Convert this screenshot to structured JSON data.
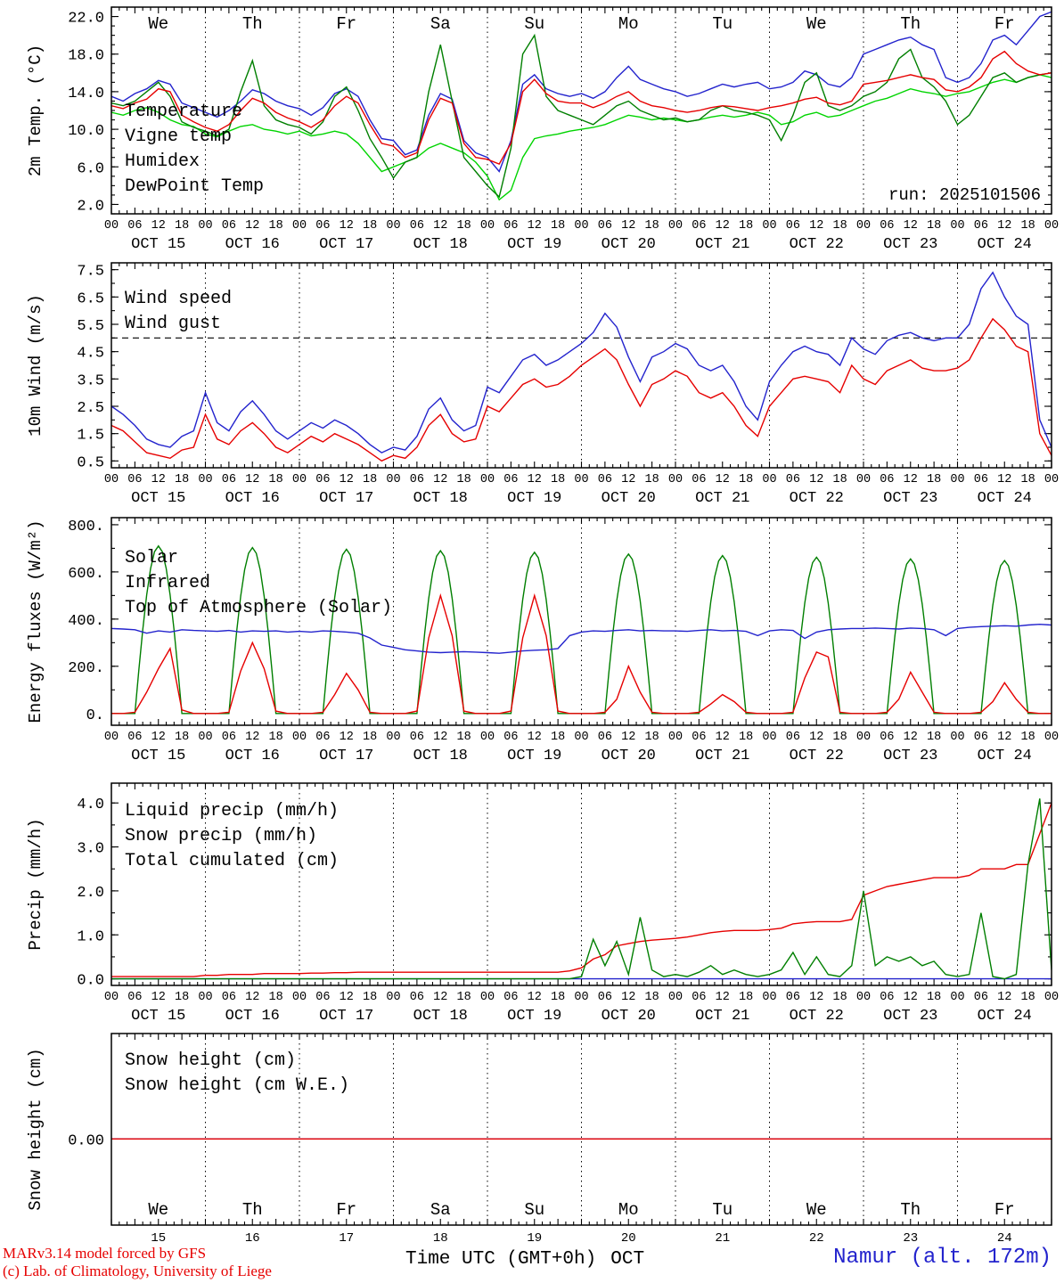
{
  "meta": {
    "palette": {
      "red": "#e60000",
      "blue": "#2323cd",
      "green_dark": "#007f00",
      "green_light": "#00d400",
      "black": "#000000"
    }
  },
  "time": {
    "days": [
      "OCT 15",
      "OCT 16",
      "OCT 17",
      "OCT 18",
      "OCT 19",
      "OCT 20",
      "OCT 21",
      "OCT 22",
      "OCT 23",
      "OCT 24"
    ],
    "day_numbers": [
      "15",
      "16",
      "17",
      "18",
      "19",
      "20",
      "21",
      "22",
      "23",
      "24"
    ],
    "weekdays": [
      "We",
      "Th",
      "Fr",
      "Sa",
      "Su",
      "Mo",
      "Tu",
      "We",
      "Th",
      "Fr"
    ],
    "weekend_indices": [
      3,
      4
    ],
    "hour_ticks": [
      "00",
      "06",
      "12",
      "18"
    ]
  },
  "footer": {
    "credit_line1": "MARv3.14 model forced by GFS",
    "credit_line2": "(c) Lab. of Climatology, University of Liege",
    "xaxis_title": "Time UTC (GMT+0h)",
    "xaxis_month": "OCT",
    "station": "Namur (alt. 172m)"
  },
  "chart_data": [
    {
      "id": "temp-2m",
      "type": "line",
      "ylabel": "2m Temp. (°C)",
      "ylim": [
        1,
        23
      ],
      "ytick_values": [
        2,
        6,
        10,
        14,
        18,
        22
      ],
      "ytick_labels": [
        "2.0",
        "6.0",
        "10.0",
        "14.0",
        "18.0",
        "22.0"
      ],
      "yminor": 1,
      "x_step_hours": 3,
      "x_range_hours": [
        0,
        240
      ],
      "legend_position": "top-left",
      "annotations": {
        "weekday_row": "top",
        "run_label": "run: 2025101506"
      },
      "series": [
        {
          "name": "Temperature",
          "color": "#e60000",
          "values": [
            12.5,
            12.2,
            12.8,
            13.2,
            14.3,
            14.0,
            11.5,
            10.8,
            10.2,
            9.8,
            10.5,
            12.0,
            13.3,
            12.8,
            11.8,
            11.2,
            10.8,
            10.2,
            11.0,
            12.5,
            13.5,
            12.8,
            10.5,
            8.5,
            8.2,
            7.0,
            7.5,
            11.0,
            13.3,
            12.8,
            8.5,
            7.0,
            6.8,
            6.3,
            8.5,
            14.0,
            15.3,
            13.8,
            13.0,
            12.8,
            12.8,
            12.3,
            12.8,
            13.5,
            14.0,
            13.0,
            12.5,
            12.3,
            12.0,
            11.8,
            12.0,
            12.3,
            12.5,
            12.4,
            12.2,
            12.0,
            12.3,
            12.5,
            12.8,
            13.2,
            13.4,
            12.8,
            12.6,
            13.0,
            14.8,
            15.0,
            15.2,
            15.5,
            15.8,
            15.5,
            15.3,
            14.2,
            14.0,
            14.5,
            15.5,
            17.5,
            18.3,
            17.0,
            16.2,
            15.8,
            16.0
          ]
        },
        {
          "name": "Vigne temp",
          "color": "#007f00",
          "values": [
            12.8,
            12.5,
            13.0,
            14.0,
            15.0,
            13.5,
            10.8,
            10.2,
            9.8,
            9.3,
            10.0,
            14.0,
            17.3,
            12.5,
            11.0,
            10.5,
            10.2,
            9.5,
            10.8,
            13.5,
            14.5,
            12.0,
            9.0,
            7.0,
            4.8,
            6.5,
            7.0,
            14.0,
            19.0,
            13.0,
            7.0,
            5.5,
            4.0,
            2.8,
            8.0,
            18.0,
            20.0,
            13.5,
            12.0,
            11.5,
            11.0,
            10.5,
            11.5,
            12.5,
            13.0,
            12.0,
            11.5,
            11.0,
            11.2,
            10.8,
            11.0,
            12.0,
            12.5,
            12.0,
            11.8,
            11.5,
            11.0,
            8.8,
            11.5,
            15.0,
            16.0,
            12.5,
            12.0,
            12.5,
            13.5,
            14.0,
            15.0,
            17.5,
            18.5,
            15.5,
            14.5,
            13.0,
            10.5,
            11.5,
            13.5,
            15.5,
            16.0,
            15.0,
            15.5,
            15.8,
            16.0
          ]
        },
        {
          "name": "Humidex",
          "color": "#2323cd",
          "values": [
            13.5,
            13.0,
            13.8,
            14.3,
            15.2,
            14.8,
            12.8,
            12.3,
            11.8,
            11.3,
            12.0,
            13.0,
            14.2,
            13.8,
            13.0,
            12.5,
            12.2,
            11.5,
            12.3,
            13.8,
            14.3,
            13.5,
            11.0,
            9.0,
            8.8,
            7.3,
            7.8,
            11.5,
            13.8,
            13.2,
            8.8,
            7.5,
            7.0,
            5.5,
            8.8,
            14.8,
            15.8,
            14.3,
            13.8,
            13.5,
            13.8,
            13.3,
            14.0,
            15.5,
            16.7,
            15.3,
            14.8,
            14.3,
            14.0,
            13.5,
            13.8,
            14.3,
            14.8,
            14.5,
            14.8,
            15.0,
            14.3,
            14.5,
            15.0,
            16.2,
            15.8,
            14.8,
            14.5,
            15.5,
            18.0,
            18.5,
            19.0,
            19.5,
            19.8,
            19.0,
            18.5,
            15.5,
            15.0,
            15.5,
            17.0,
            19.5,
            20.0,
            19.0,
            20.5,
            22.0,
            22.5
          ]
        },
        {
          "name": "DewPoint Temp",
          "color": "#00d400",
          "values": [
            11.8,
            11.5,
            12.0,
            12.3,
            11.8,
            11.0,
            10.5,
            10.3,
            9.5,
            9.2,
            9.8,
            10.3,
            10.5,
            10.0,
            9.8,
            9.5,
            9.8,
            9.3,
            9.5,
            9.8,
            9.5,
            8.5,
            7.0,
            5.5,
            6.0,
            6.5,
            7.0,
            8.0,
            8.5,
            8.0,
            7.5,
            6.5,
            5.0,
            2.5,
            3.5,
            7.0,
            9.0,
            9.3,
            9.5,
            9.8,
            10.0,
            10.2,
            10.5,
            11.0,
            11.5,
            11.3,
            11.0,
            11.2,
            11.0,
            10.8,
            11.0,
            11.3,
            11.5,
            11.3,
            11.5,
            11.8,
            11.5,
            10.5,
            10.8,
            11.5,
            11.8,
            11.3,
            11.5,
            12.0,
            12.5,
            13.0,
            13.3,
            13.8,
            14.3,
            14.0,
            13.8,
            13.5,
            13.8,
            14.0,
            14.5,
            15.0,
            15.3,
            15.0,
            15.5,
            15.8,
            15.5
          ]
        }
      ]
    },
    {
      "id": "wind-10m",
      "type": "line",
      "ylabel": "10m Wind (m/s)",
      "ylim": [
        0.25,
        7.75
      ],
      "ytick_values": [
        0.5,
        1.5,
        2.5,
        3.5,
        4.5,
        5.5,
        6.5,
        7.5
      ],
      "ytick_labels": [
        "0.5",
        "1.5",
        "2.5",
        "3.5",
        "4.5",
        "5.5",
        "6.5",
        "7.5"
      ],
      "yminor": 0.5,
      "x_step_hours": 3,
      "x_range_hours": [
        0,
        240
      ],
      "legend_position": "top-left",
      "annotations": {
        "hline": 5.0
      },
      "series": [
        {
          "name": "Wind speed",
          "color": "#e60000",
          "values": [
            1.8,
            1.6,
            1.2,
            0.8,
            0.7,
            0.6,
            0.9,
            1.0,
            2.2,
            1.3,
            1.1,
            1.6,
            1.9,
            1.5,
            1.0,
            0.8,
            1.1,
            1.4,
            1.2,
            1.5,
            1.3,
            1.1,
            0.8,
            0.5,
            0.7,
            0.6,
            1.0,
            1.8,
            2.2,
            1.5,
            1.2,
            1.3,
            2.5,
            2.3,
            2.8,
            3.3,
            3.5,
            3.2,
            3.3,
            3.6,
            4.0,
            4.3,
            4.6,
            4.2,
            3.3,
            2.5,
            3.3,
            3.5,
            3.8,
            3.6,
            3.0,
            2.8,
            3.0,
            2.5,
            1.8,
            1.4,
            2.5,
            3.0,
            3.5,
            3.6,
            3.5,
            3.4,
            3.0,
            4.0,
            3.5,
            3.3,
            3.8,
            4.0,
            4.2,
            3.9,
            3.8,
            3.8,
            3.9,
            4.2,
            5.0,
            5.7,
            5.3,
            4.7,
            4.5,
            1.5,
            0.7
          ]
        },
        {
          "name": "Wind gust",
          "color": "#2323cd",
          "values": [
            2.5,
            2.2,
            1.8,
            1.3,
            1.1,
            1.0,
            1.4,
            1.6,
            3.0,
            1.9,
            1.6,
            2.3,
            2.7,
            2.2,
            1.6,
            1.3,
            1.6,
            1.9,
            1.7,
            2.0,
            1.8,
            1.5,
            1.1,
            0.8,
            1.0,
            0.9,
            1.4,
            2.4,
            2.8,
            2.0,
            1.6,
            1.8,
            3.2,
            3.0,
            3.6,
            4.2,
            4.4,
            4.0,
            4.2,
            4.5,
            4.8,
            5.2,
            5.9,
            5.4,
            4.3,
            3.4,
            4.3,
            4.5,
            4.8,
            4.6,
            4.0,
            3.8,
            4.0,
            3.4,
            2.5,
            2.0,
            3.4,
            4.0,
            4.5,
            4.7,
            4.5,
            4.4,
            4.0,
            5.0,
            4.6,
            4.4,
            4.9,
            5.1,
            5.2,
            5.0,
            4.9,
            5.0,
            5.0,
            5.5,
            6.8,
            7.4,
            6.5,
            5.8,
            5.5,
            2.0,
            1.0
          ]
        }
      ]
    },
    {
      "id": "energy-fluxes",
      "type": "line",
      "ylabel": "Energy fluxes (W/m²)",
      "ylim": [
        -50,
        830
      ],
      "ytick_values": [
        0,
        200,
        400,
        600,
        800
      ],
      "ytick_labels": [
        "0.",
        "200.",
        "400.",
        "600.",
        "800."
      ],
      "yminor": 100,
      "x_step_hours": 3,
      "x_range_hours": [
        0,
        240
      ],
      "legend_position": "top-left",
      "annotations": {},
      "series": [
        {
          "name": "Solar",
          "color": "#e60000",
          "values": [
            0,
            0,
            5,
            90,
            190,
            275,
            15,
            0,
            0,
            0,
            5,
            180,
            300,
            190,
            10,
            0,
            0,
            0,
            5,
            80,
            170,
            100,
            5,
            0,
            0,
            0,
            10,
            320,
            500,
            330,
            10,
            0,
            0,
            0,
            10,
            320,
            500,
            330,
            10,
            0,
            0,
            0,
            5,
            60,
            200,
            90,
            5,
            0,
            0,
            0,
            5,
            40,
            80,
            50,
            5,
            0,
            0,
            0,
            5,
            150,
            260,
            240,
            5,
            0,
            0,
            0,
            5,
            60,
            175,
            90,
            5,
            0,
            0,
            0,
            5,
            50,
            130,
            60,
            5,
            0,
            0
          ]
        },
        {
          "name": "Infrared",
          "color": "#2323cd",
          "values": [
            360,
            358,
            355,
            340,
            350,
            345,
            355,
            352,
            350,
            348,
            352,
            345,
            350,
            348,
            350,
            345,
            348,
            345,
            350,
            348,
            345,
            340,
            320,
            290,
            280,
            270,
            265,
            260,
            258,
            260,
            262,
            260,
            258,
            255,
            260,
            265,
            268,
            270,
            275,
            330,
            345,
            350,
            348,
            352,
            355,
            350,
            352,
            350,
            350,
            348,
            352,
            355,
            350,
            352,
            348,
            330,
            350,
            355,
            352,
            318,
            345,
            355,
            358,
            360,
            360,
            362,
            360,
            358,
            362,
            360,
            355,
            330,
            360,
            365,
            368,
            370,
            372,
            370,
            375,
            378,
            375
          ]
        },
        {
          "name": "Top of Atmosphere (Solar)",
          "color": "#007f00",
          "bell": true,
          "day_peaks": [
            710,
            703,
            696,
            690,
            683,
            676,
            669,
            662,
            655,
            648
          ]
        }
      ]
    },
    {
      "id": "precip",
      "type": "line",
      "ylabel": "Precip (mm/h)",
      "ylim": [
        -0.15,
        4.45
      ],
      "ytick_values": [
        0,
        1,
        2,
        3,
        4
      ],
      "ytick_labels": [
        "0.0",
        "1.0",
        "2.0",
        "3.0",
        "4.0"
      ],
      "yminor": 0.5,
      "x_step_hours": 3,
      "x_range_hours": [
        0,
        240
      ],
      "legend_position": "top-left",
      "annotations": {},
      "series": [
        {
          "name": "Liquid precip (mm/h)",
          "color": "#007f00",
          "values": [
            0,
            0,
            0,
            0,
            0,
            0,
            0,
            0,
            0,
            0,
            0,
            0,
            0,
            0,
            0,
            0,
            0,
            0,
            0,
            0,
            0,
            0,
            0,
            0,
            0,
            0,
            0,
            0,
            0,
            0,
            0,
            0,
            0,
            0,
            0,
            0,
            0,
            0,
            0,
            0,
            0.05,
            0.9,
            0.3,
            0.85,
            0.1,
            1.4,
            0.2,
            0.05,
            0.1,
            0.05,
            0.15,
            0.3,
            0.1,
            0.2,
            0.1,
            0.05,
            0.1,
            0.2,
            0.6,
            0.1,
            0.5,
            0.1,
            0.05,
            0.3,
            2.0,
            0.3,
            0.5,
            0.4,
            0.5,
            0.3,
            0.4,
            0.1,
            0.05,
            0.1,
            1.5,
            0.05,
            0,
            0.1,
            2.6,
            4.1,
            0.2
          ]
        },
        {
          "name": "Snow precip (mm/h)",
          "color": "#2323cd",
          "constant": 0
        },
        {
          "name": "Total cumulated (cm)",
          "color": "#e60000",
          "values": [
            0.05,
            0.05,
            0.05,
            0.05,
            0.05,
            0.05,
            0.05,
            0.05,
            0.08,
            0.08,
            0.1,
            0.1,
            0.1,
            0.12,
            0.12,
            0.12,
            0.12,
            0.13,
            0.13,
            0.14,
            0.14,
            0.15,
            0.15,
            0.15,
            0.15,
            0.15,
            0.15,
            0.15,
            0.15,
            0.15,
            0.15,
            0.15,
            0.15,
            0.15,
            0.15,
            0.15,
            0.15,
            0.15,
            0.15,
            0.18,
            0.25,
            0.45,
            0.55,
            0.75,
            0.8,
            0.85,
            0.88,
            0.9,
            0.92,
            0.95,
            1.0,
            1.05,
            1.08,
            1.1,
            1.1,
            1.1,
            1.12,
            1.15,
            1.25,
            1.28,
            1.3,
            1.3,
            1.3,
            1.35,
            1.9,
            2.0,
            2.1,
            2.15,
            2.2,
            2.25,
            2.3,
            2.3,
            2.3,
            2.35,
            2.5,
            2.5,
            2.5,
            2.6,
            2.6,
            3.3,
            4.0
          ]
        }
      ]
    },
    {
      "id": "snow-height",
      "type": "line",
      "ylabel": "Snow height (cm)",
      "ylim": [
        -0.9,
        1.1
      ],
      "ytick_values": [
        0
      ],
      "ytick_labels": [
        "0.00"
      ],
      "yminor": 0,
      "x_step_hours": 3,
      "x_range_hours": [
        0,
        240
      ],
      "legend_position": "top-left",
      "annotations": {
        "weekday_row": "bottom",
        "xticks": "day_numbers"
      },
      "series": [
        {
          "name": "Snow height (cm)",
          "color": "#e60000",
          "constant": 0
        },
        {
          "name": "Snow height (cm W.E.)",
          "color": "#2323cd",
          "constant": 0
        }
      ]
    }
  ]
}
